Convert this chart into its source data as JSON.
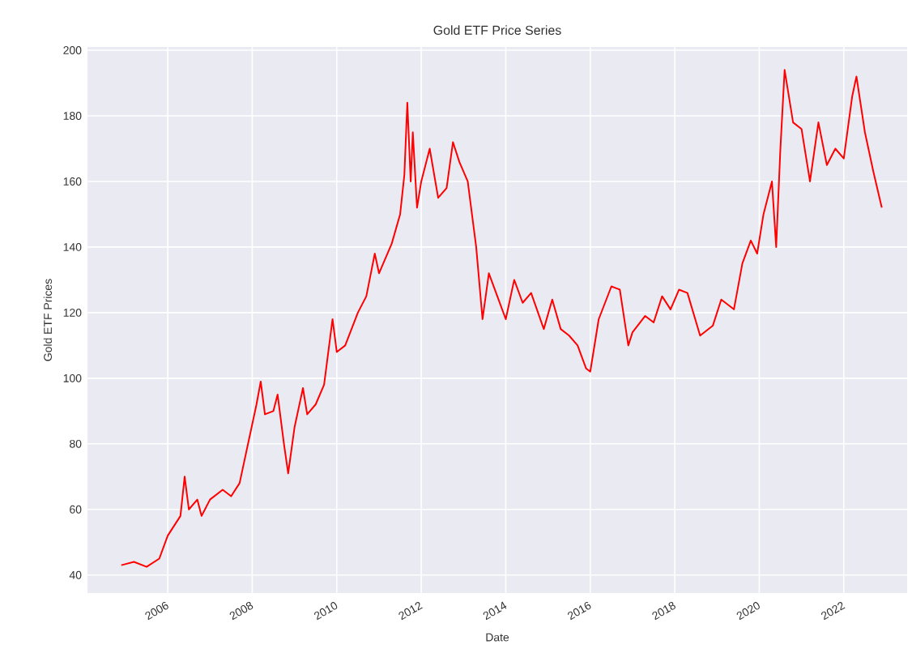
{
  "chart_data": {
    "type": "line",
    "title": "Gold ETF Price Series",
    "xlabel": "Date",
    "ylabel": "Gold ETF Prices",
    "x": [
      2004.9,
      2005.2,
      2005.5,
      2005.8,
      2006.0,
      2006.3,
      2006.4,
      2006.5,
      2006.7,
      2006.8,
      2007.0,
      2007.3,
      2007.5,
      2007.7,
      2007.9,
      2008.1,
      2008.2,
      2008.3,
      2008.5,
      2008.6,
      2008.75,
      2008.85,
      2009.0,
      2009.2,
      2009.3,
      2009.5,
      2009.7,
      2009.9,
      2010.0,
      2010.2,
      2010.5,
      2010.7,
      2010.9,
      2011.0,
      2011.3,
      2011.5,
      2011.6,
      2011.67,
      2011.75,
      2011.8,
      2011.9,
      2012.0,
      2012.2,
      2012.4,
      2012.6,
      2012.75,
      2012.9,
      2013.1,
      2013.3,
      2013.45,
      2013.6,
      2013.8,
      2014.0,
      2014.2,
      2014.4,
      2014.6,
      2014.9,
      2015.1,
      2015.3,
      2015.5,
      2015.7,
      2015.9,
      2016.0,
      2016.2,
      2016.5,
      2016.7,
      2016.9,
      2017.0,
      2017.3,
      2017.5,
      2017.7,
      2017.9,
      2018.1,
      2018.3,
      2018.6,
      2018.9,
      2019.1,
      2019.4,
      2019.6,
      2019.8,
      2019.95,
      2020.1,
      2020.3,
      2020.4,
      2020.5,
      2020.6,
      2020.8,
      2021.0,
      2021.2,
      2021.4,
      2021.6,
      2021.8,
      2022.0,
      2022.2,
      2022.3,
      2022.5,
      2022.7,
      2022.9
    ],
    "series": [
      {
        "color": "#ff0000",
        "values": [
          43,
          44,
          42.5,
          45,
          52,
          58,
          70,
          60,
          63,
          58,
          63,
          66,
          64,
          68,
          80,
          92,
          99,
          89,
          90,
          95,
          80,
          71,
          85,
          97,
          89,
          92,
          98,
          118,
          108,
          110,
          120,
          125,
          138,
          132,
          141,
          150,
          162,
          184,
          160,
          175,
          152,
          160,
          170,
          155,
          158,
          172,
          166,
          160,
          140,
          118,
          132,
          125,
          118,
          130,
          123,
          126,
          115,
          124,
          115,
          113,
          110,
          103,
          102,
          118,
          128,
          127,
          110,
          114,
          119,
          117,
          125,
          121,
          127,
          126,
          113,
          116,
          124,
          121,
          135,
          142,
          138,
          150,
          160,
          140,
          170,
          194,
          178,
          176,
          160,
          178,
          165,
          170,
          167,
          186,
          192,
          175,
          163,
          152
        ]
      }
    ],
    "xlim": [
      2004.1,
      2023.5
    ],
    "ylim": [
      34.5,
      201
    ],
    "xticks": [
      2006,
      2008,
      2010,
      2012,
      2014,
      2016,
      2018,
      2020,
      2022
    ],
    "yticks": [
      40,
      60,
      80,
      100,
      120,
      140,
      160,
      180,
      200
    ],
    "grid": true,
    "marker": "none",
    "line_style": "solid"
  }
}
